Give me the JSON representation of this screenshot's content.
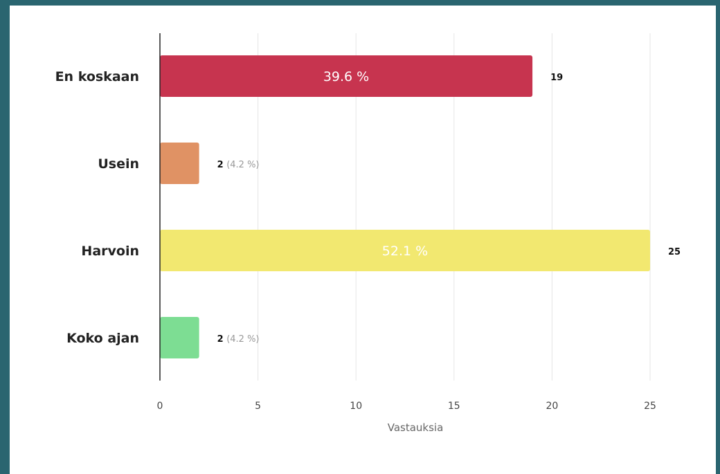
{
  "chart_data": {
    "type": "bar",
    "orientation": "horizontal",
    "categories": [
      "En koskaan",
      "Usein",
      "Harvoin",
      "Koko ajan"
    ],
    "values": [
      19,
      2,
      25,
      2
    ],
    "percentages": [
      "39.6 %",
      "4.2 %",
      "52.1 %",
      "4.2 %"
    ],
    "colors": [
      "#c7344f",
      "#e09264",
      "#f2e870",
      "#7ddd93"
    ],
    "xlabel": "Vastauksia",
    "ylabel": "",
    "title": "",
    "xlim": [
      0,
      25
    ],
    "xticks": [
      0,
      5,
      10,
      15,
      20,
      25
    ],
    "grid": true,
    "legend": "none"
  }
}
